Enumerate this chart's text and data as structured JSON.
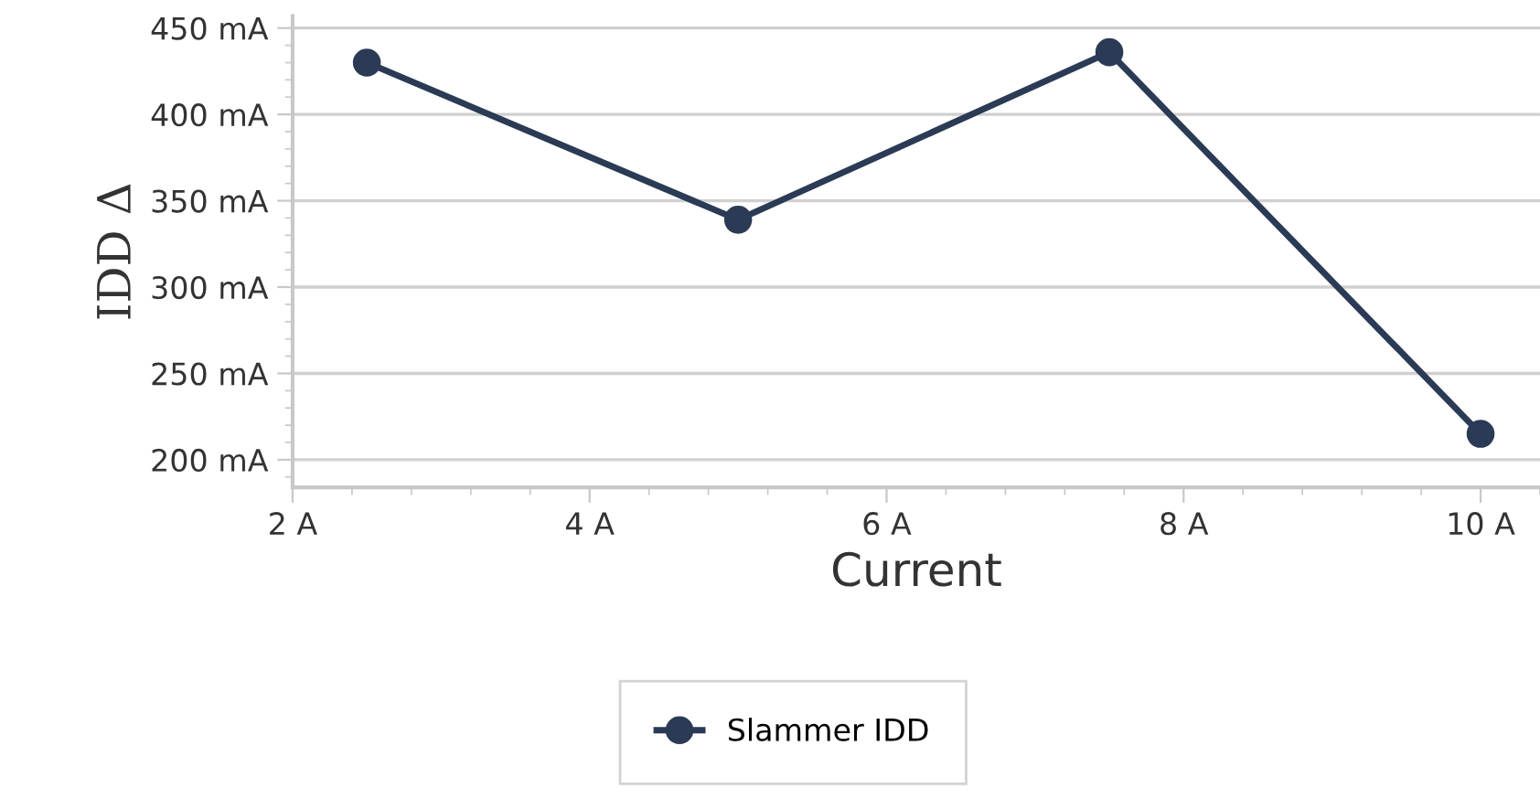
{
  "chart_data": {
    "type": "line",
    "xlabel": "Current",
    "ylabel": "IDD Δ",
    "x": [
      2.5,
      5,
      7.5,
      10
    ],
    "series": [
      {
        "name": "Slammer IDD",
        "color": "#2b3a55",
        "values": [
          430,
          339,
          436,
          215
        ]
      }
    ],
    "xlim": [
      2,
      10.4
    ],
    "xticks": [
      {
        "value": 2,
        "label": "2 A"
      },
      {
        "value": 4,
        "label": "4 A"
      },
      {
        "value": 6,
        "label": "6 A"
      },
      {
        "value": 8,
        "label": "8 A"
      },
      {
        "value": 10,
        "label": "10 A"
      }
    ],
    "ylim": [
      184,
      457
    ],
    "yticks": [
      {
        "value": 200,
        "label": "200 mA"
      },
      {
        "value": 250,
        "label": "250 mA"
      },
      {
        "value": 300,
        "label": "300 mA"
      },
      {
        "value": 350,
        "label": "350 mA"
      },
      {
        "value": 400,
        "label": "400 mA"
      },
      {
        "value": 450,
        "label": "450 mA"
      }
    ],
    "grid": "y",
    "legend": "bottom",
    "marker": "circle",
    "line_style": "solid"
  }
}
